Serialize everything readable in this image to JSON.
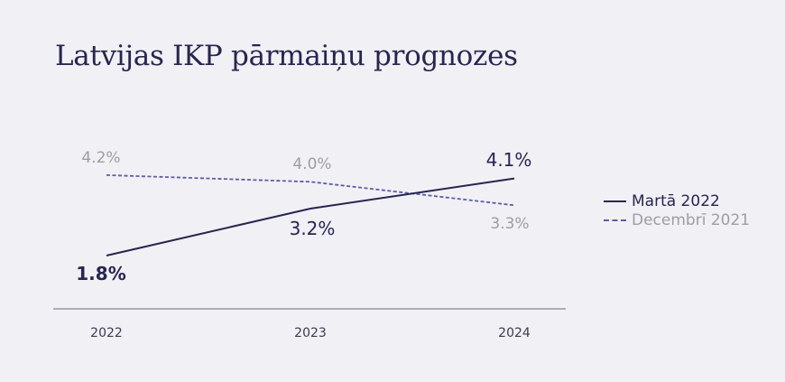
{
  "title": "Latvijas IKP pārmaiņu prognozes",
  "colors": {
    "background": "#f1f0f5",
    "title": "#27264f",
    "axis": "#6b6a84",
    "marts_line": "#27264f",
    "decembris_line": "#5d5ca5",
    "decembris_label": "#9e9e9e"
  },
  "chart_data": {
    "type": "line",
    "title": "Latvijas IKP pārmaiņu prognozes",
    "xlabel": "",
    "ylabel": "",
    "categories": [
      "2022",
      "2023",
      "2024"
    ],
    "series": [
      {
        "name": "Martā 2022",
        "values": [
          1.8,
          3.2,
          4.1
        ],
        "labels": [
          "1.8%",
          "3.2%",
          "4.1%"
        ],
        "style": "solid"
      },
      {
        "name": "Decembrī 2021",
        "values": [
          4.2,
          4.0,
          3.3
        ],
        "labels": [
          "4.2%",
          "4.0%",
          "3.3%"
        ],
        "style": "dashed"
      }
    ],
    "y_axis_visible": false,
    "grid": false,
    "legend_position": "right"
  }
}
